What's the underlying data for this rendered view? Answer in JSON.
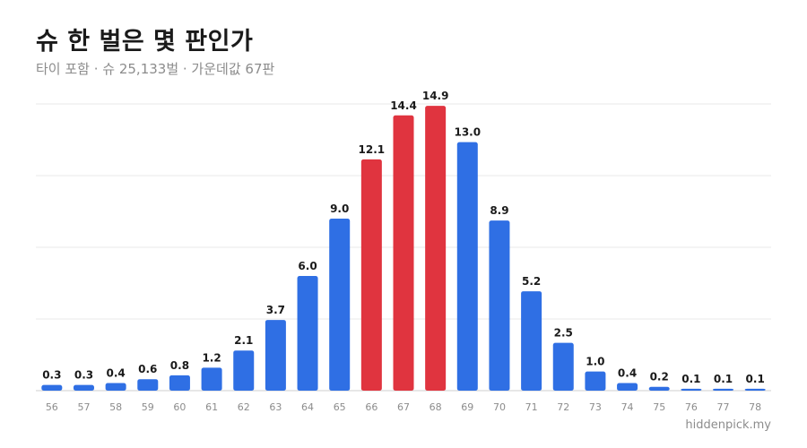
{
  "title": "슈 한 벌은 몇 판인가",
  "subtitle": "타이 포함 · 슈 25,133벌 · 가운데값 67판",
  "watermark": "hiddenpick.my",
  "colors": {
    "normal": "#2f6fe4",
    "highlight": "#e0343f",
    "grid": "#e9e9e9",
    "axis": "#cfcfcf"
  },
  "chart_data": {
    "type": "bar",
    "categories": [
      "56",
      "57",
      "58",
      "59",
      "60",
      "61",
      "62",
      "63",
      "64",
      "65",
      "66",
      "67",
      "68",
      "69",
      "70",
      "71",
      "72",
      "73",
      "74",
      "75",
      "76",
      "77",
      "78"
    ],
    "values": [
      0.3,
      0.3,
      0.4,
      0.6,
      0.8,
      1.2,
      2.1,
      3.7,
      6.0,
      9.0,
      12.1,
      14.4,
      14.9,
      13.0,
      8.9,
      5.2,
      2.5,
      1.0,
      0.4,
      0.2,
      0.1,
      0.1,
      0.1
    ],
    "value_labels": [
      "0.3",
      "0.3",
      "0.4",
      "0.6",
      "0.8",
      "1.2",
      "2.1",
      "3.7",
      "6.0",
      "9.0",
      "12.1",
      "14.4",
      "14.9",
      "13.0",
      "8.9",
      "5.2",
      "2.5",
      "1.0",
      "0.4",
      "0.2",
      "0.1",
      "0.1",
      "0.1"
    ],
    "highlighted": [
      "66",
      "67",
      "68"
    ],
    "ylim": [
      0,
      15
    ],
    "gridlines": [
      0,
      3.75,
      7.5,
      11.25,
      15
    ],
    "grid": true
  }
}
